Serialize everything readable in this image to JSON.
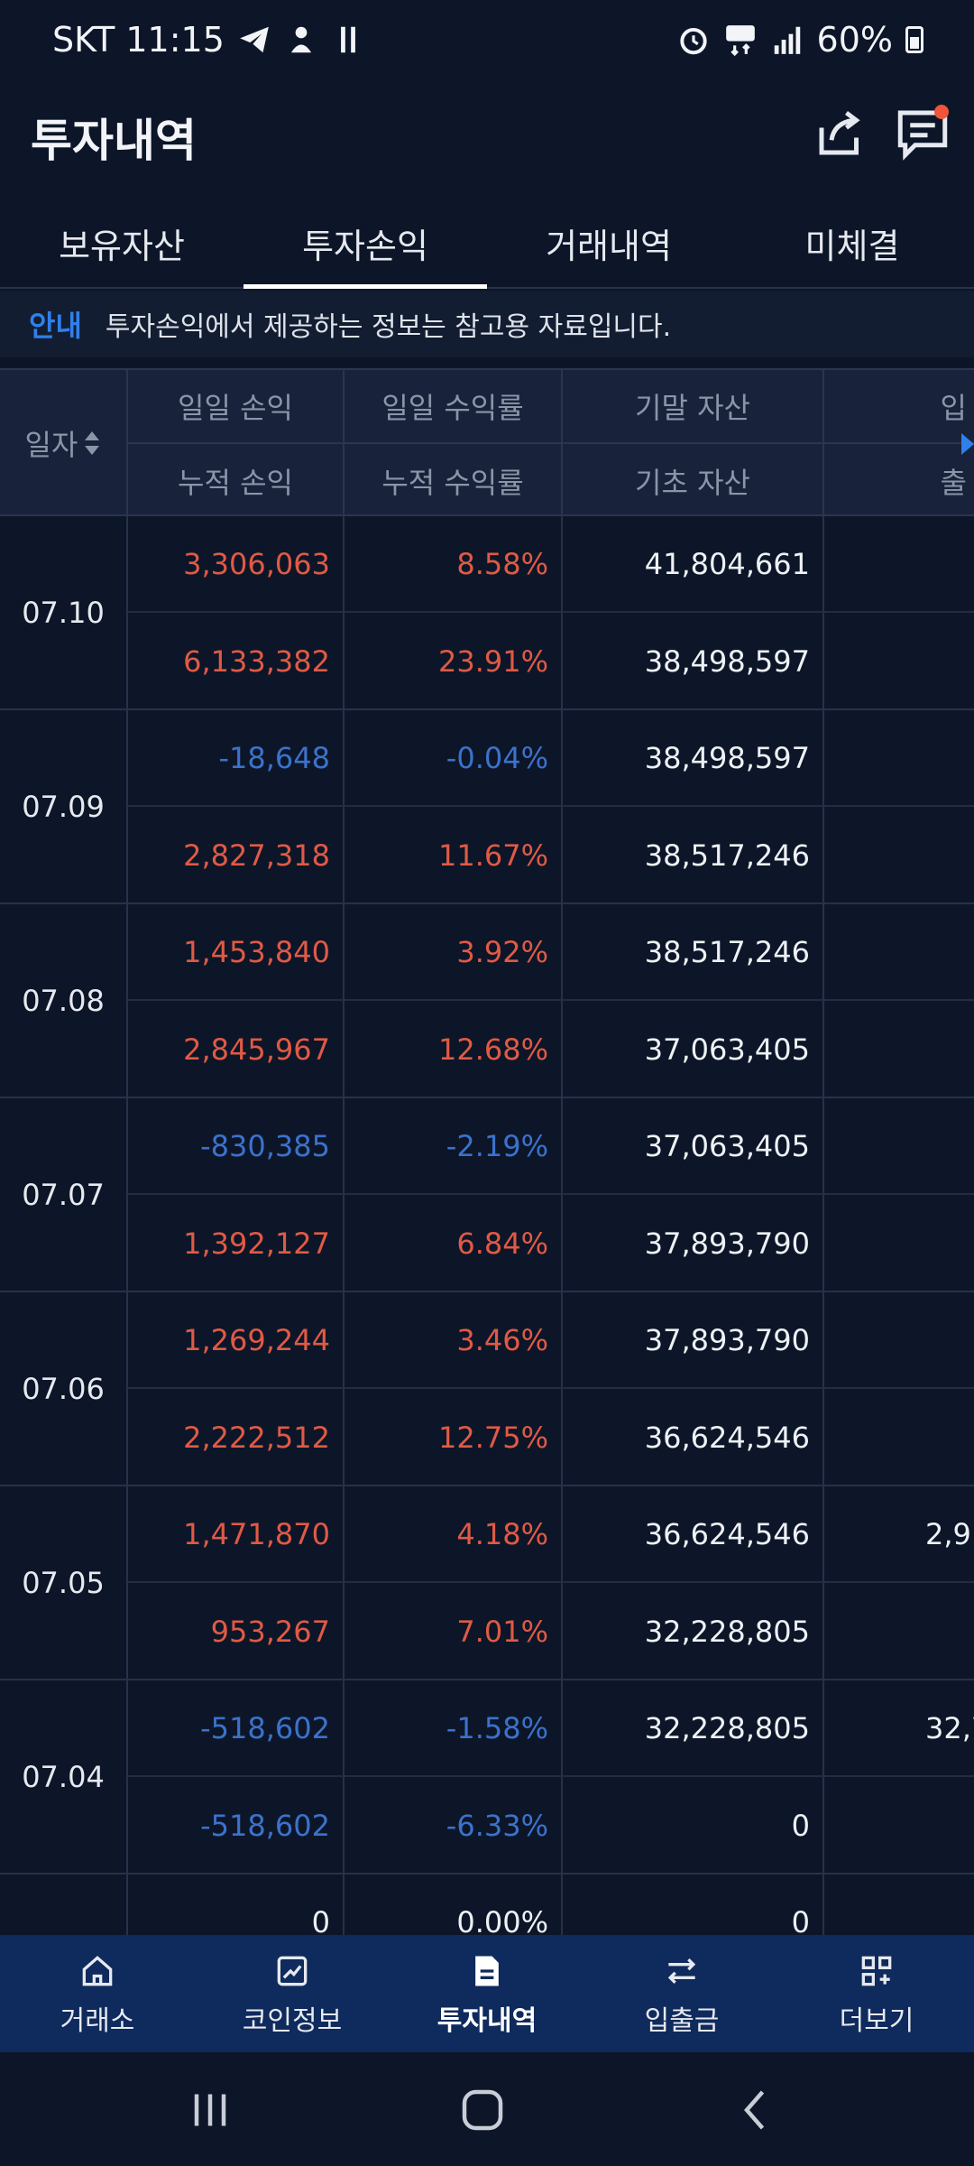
{
  "status_bar": {
    "carrier_time": "SKT 11:15",
    "battery": "60%",
    "left_icons": [
      "telegram-icon",
      "app-icon",
      "hash-icon"
    ],
    "right_icons": [
      "alarm-icon",
      "5g-icon",
      "signal-icon",
      "battery-icon"
    ]
  },
  "header": {
    "title": "투자내역"
  },
  "tabs": [
    {
      "label": "보유자산",
      "active": false
    },
    {
      "label": "투자손익",
      "active": true
    },
    {
      "label": "거래내역",
      "active": false
    },
    {
      "label": "미체결",
      "active": false
    }
  ],
  "notice": {
    "tag": "안내",
    "text": "투자손익에서 제공하는 정보는 참고용 자료입니다."
  },
  "table": {
    "date_header": "일자",
    "col1": {
      "top": "일일 손익",
      "bottom": "누적 손익"
    },
    "col2": {
      "top": "일일 수익률",
      "bottom": "누적 수익률"
    },
    "col3": {
      "top": "기말 자산",
      "bottom": "기초 자산"
    },
    "col4": {
      "top": "입",
      "bottom": "출"
    },
    "rows": [
      {
        "date": "07.10",
        "daily_pl": "3,306,063",
        "cum_pl": "6,133,382",
        "daily_rate": "8.58%",
        "cum_rate": "23.91%",
        "end_asset": "41,804,661",
        "begin_asset": "38,498,597",
        "c4_top": "",
        "c4_bottom": ""
      },
      {
        "date": "07.09",
        "daily_pl": "-18,648",
        "cum_pl": "2,827,318",
        "daily_rate": "-0.04%",
        "cum_rate": "11.67%",
        "end_asset": "38,498,597",
        "begin_asset": "38,517,246",
        "c4_top": "",
        "c4_bottom": ""
      },
      {
        "date": "07.08",
        "daily_pl": "1,453,840",
        "cum_pl": "2,845,967",
        "daily_rate": "3.92%",
        "cum_rate": "12.68%",
        "end_asset": "38,517,246",
        "begin_asset": "37,063,405",
        "c4_top": "",
        "c4_bottom": ""
      },
      {
        "date": "07.07",
        "daily_pl": "-830,385",
        "cum_pl": "1,392,127",
        "daily_rate": "-2.19%",
        "cum_rate": "6.84%",
        "end_asset": "37,063,405",
        "begin_asset": "37,893,790",
        "c4_top": "",
        "c4_bottom": ""
      },
      {
        "date": "07.06",
        "daily_pl": "1,269,244",
        "cum_pl": "2,222,512",
        "daily_rate": "3.46%",
        "cum_rate": "12.75%",
        "end_asset": "37,893,790",
        "begin_asset": "36,624,546",
        "c4_top": "",
        "c4_bottom": ""
      },
      {
        "date": "07.05",
        "daily_pl": "1,471,870",
        "cum_pl": "953,267",
        "daily_rate": "4.18%",
        "cum_rate": "7.01%",
        "end_asset": "36,624,546",
        "begin_asset": "32,228,805",
        "c4_top": "2,9",
        "c4_bottom": ""
      },
      {
        "date": "07.04",
        "daily_pl": "-518,602",
        "cum_pl": "-518,602",
        "daily_rate": "-1.58%",
        "cum_rate": "-6.33%",
        "end_asset": "32,228,805",
        "begin_asset": "0",
        "c4_top": "32,7",
        "c4_bottom": ""
      },
      {
        "date": "",
        "daily_pl": "0",
        "cum_pl": "",
        "daily_rate": "0.00%",
        "cum_rate": "",
        "end_asset": "0",
        "begin_asset": "",
        "c4_top": "",
        "c4_bottom": ""
      }
    ]
  },
  "bottom_nav": [
    {
      "label": "거래소",
      "icon": "home-icon",
      "active": false
    },
    {
      "label": "코인정보",
      "icon": "chart-icon",
      "active": false
    },
    {
      "label": "투자내역",
      "icon": "document-icon",
      "active": true
    },
    {
      "label": "입출금",
      "icon": "transfer-icon",
      "active": false
    },
    {
      "label": "더보기",
      "icon": "grid-plus-icon",
      "active": false
    }
  ],
  "colors": {
    "background": "#0d1628",
    "positive": "#e05a45",
    "negative": "#3b72cc",
    "accent": "#2f80ed",
    "nav_bg": "#0f2a5c"
  }
}
